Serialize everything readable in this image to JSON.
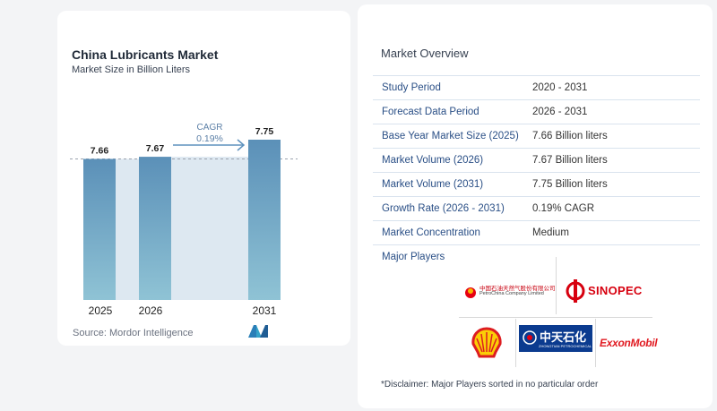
{
  "chart_data": {
    "type": "bar",
    "title": "China Lubricants Market",
    "subtitle": "Market Size in Billion Liters",
    "categories": [
      "2025",
      "2026",
      "2031"
    ],
    "values": [
      7.66,
      7.67,
      7.75
    ],
    "value_labels": [
      "7.66",
      "7.67",
      "7.75"
    ],
    "cagr_label": "CAGR",
    "cagr_value": "0.19%",
    "grid": false,
    "colors": {
      "bar_top": "#5b90b8",
      "bar_bottom": "#8fc3d5",
      "gap_band": "#dde8f1",
      "arrow": "#5e92be"
    }
  },
  "source": "Source:  Mordor Intelligence",
  "overview": {
    "title": "Market Overview",
    "rows": [
      {
        "label": "Study Period",
        "value": "2020 - 2031"
      },
      {
        "label": "Forecast Data Period",
        "value": "2026 - 2031"
      },
      {
        "label": "Base Year Market Size (2025)",
        "value": "7.66 Billion liters"
      },
      {
        "label": "Market Volume (2026)",
        "value": "7.67 Billion liters"
      },
      {
        "label": "Market Volume (2031)",
        "value": "7.75 Billion liters"
      },
      {
        "label": "Growth Rate (2026 - 2031)",
        "value": "0.19% CAGR"
      },
      {
        "label": "Market Concentration",
        "value": "Medium"
      }
    ],
    "major_players_label": "Major Players",
    "players": [
      {
        "name": "PetroChina Company Limited",
        "cn": "中国石油天然气股份有限公司",
        "icon": "petrochina-logo"
      },
      {
        "name": "SINOPEC",
        "icon": "sinopec-logo"
      },
      {
        "name": "Shell",
        "icon": "shell-logo"
      },
      {
        "name": "中天石化",
        "sub": "ZHONGTIAN PETROCHEMICAL",
        "icon": "zhongtian-logo"
      },
      {
        "name": "ExxonMobil",
        "icon": "exxonmobil-logo"
      }
    ],
    "disclaimer": "*Disclaimer: Major Players sorted in no particular order"
  }
}
